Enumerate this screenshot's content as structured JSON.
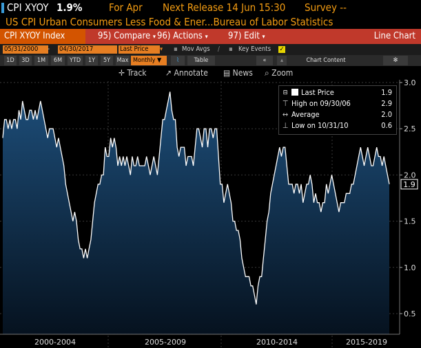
{
  "header": {
    "ticker": "CPI XYOY",
    "last": "1.9%",
    "for_label": "For Apr",
    "next_release": "Next Release 14 Jun 15:30",
    "survey": "Survey --"
  },
  "description": "US CPI Urban Consumers Less Food & Ener...Bureau of Labor Statistics",
  "menu": {
    "index_label": "CPI XYOY Index",
    "compare": "95) Compare",
    "actions": "96) Actions",
    "edit": "97) Edit",
    "chart_type": "Line Chart"
  },
  "range": {
    "start": "05/31/2000",
    "end": "04/30/2017",
    "field": "Last Price",
    "mov_avgs": "Mov Avgs",
    "key_events": "Key Events"
  },
  "periods": [
    "1D",
    "3D",
    "1M",
    "6M",
    "YTD",
    "1Y",
    "5Y",
    "Max"
  ],
  "frequency": "Monthly",
  "table_label": "Table",
  "chart_content": "Chart Content",
  "tools": [
    "Track",
    "Annotate",
    "News",
    "Zoom"
  ],
  "legend": {
    "last_price_label": "Last Price",
    "last_price_value": "1.9",
    "high_label": "High on 09/30/06",
    "high_value": "2.9",
    "average_label": "Average",
    "average_value": "2.0",
    "low_label": "Low on 10/31/10",
    "low_value": "0.6"
  },
  "colors": {
    "accent_orange": "#f39c12",
    "menu_red": "#c0392b",
    "line": "#ffffff",
    "fill_top": "#1d4e7a",
    "fill_bottom": "#06121f"
  },
  "chart_data": {
    "type": "area",
    "title": "CPI XYOY",
    "ylim": [
      0.4,
      3.1
    ],
    "yticks": [
      0.5,
      1.0,
      1.5,
      2.0,
      2.5,
      3.0
    ],
    "xticks": [
      "2000-2004",
      "2005-2009",
      "2010-2014",
      "2015-2019"
    ],
    "last_value_label": "1.9",
    "x_start": "2000-05",
    "x_end": "2017-04",
    "series": [
      {
        "values": [
          2.4,
          2.6,
          2.6,
          2.5,
          2.6,
          2.5,
          2.6,
          2.6,
          2.5,
          2.7,
          2.6,
          2.8,
          2.7,
          2.6,
          2.6,
          2.7,
          2.7,
          2.6,
          2.7,
          2.6,
          2.7,
          2.8,
          2.7,
          2.6,
          2.5,
          2.4,
          2.5,
          2.5,
          2.5,
          2.4,
          2.3,
          2.4,
          2.3,
          2.2,
          2.1,
          1.9,
          1.8,
          1.7,
          1.6,
          1.5,
          1.6,
          1.5,
          1.3,
          1.2,
          1.2,
          1.1,
          1.2,
          1.1,
          1.2,
          1.3,
          1.5,
          1.7,
          1.8,
          1.9,
          1.9,
          2.0,
          2.0,
          2.3,
          2.2,
          2.2,
          2.4,
          2.3,
          2.4,
          2.3,
          2.1,
          2.2,
          2.1,
          2.2,
          2.1,
          2.2,
          2.1,
          2.0,
          2.2,
          2.1,
          2.1,
          2.2,
          2.1,
          2.1,
          2.1,
          2.1,
          2.2,
          2.1,
          2.0,
          2.1,
          2.2,
          2.1,
          2.0,
          2.2,
          2.4,
          2.6,
          2.6,
          2.7,
          2.8,
          2.9,
          2.7,
          2.6,
          2.6,
          2.3,
          2.2,
          2.3,
          2.3,
          2.3,
          2.1,
          2.2,
          2.2,
          2.2,
          2.1,
          2.3,
          2.5,
          2.5,
          2.4,
          2.3,
          2.5,
          2.5,
          2.3,
          2.5,
          2.5,
          2.4,
          2.5,
          2.5,
          2.2,
          1.9,
          1.9,
          1.7,
          1.8,
          1.9,
          1.8,
          1.7,
          1.5,
          1.5,
          1.4,
          1.4,
          1.3,
          1.1,
          1.0,
          0.9,
          0.9,
          0.9,
          0.8,
          0.8,
          0.7,
          0.6,
          0.8,
          0.9,
          0.9,
          1.1,
          1.3,
          1.5,
          1.6,
          1.8,
          1.9,
          2.0,
          2.1,
          2.2,
          2.3,
          2.2,
          2.3,
          2.3,
          2.1,
          1.9,
          1.9,
          1.9,
          1.8,
          1.9,
          1.9,
          1.8,
          1.9,
          1.7,
          1.8,
          1.9,
          1.9,
          2.0,
          1.9,
          1.7,
          1.8,
          1.7,
          1.7,
          1.6,
          1.7,
          1.7,
          1.9,
          1.8,
          1.9,
          2.0,
          1.9,
          1.8,
          1.7,
          1.6,
          1.7,
          1.7,
          1.7,
          1.8,
          1.8,
          1.8,
          1.9,
          1.9,
          2.0,
          2.1,
          2.2,
          2.3,
          2.2,
          2.1,
          2.2,
          2.3,
          2.2,
          2.1,
          2.1,
          2.2,
          2.3,
          2.2,
          2.2,
          2.1,
          2.2,
          2.1,
          2.0,
          1.9
        ]
      }
    ]
  }
}
